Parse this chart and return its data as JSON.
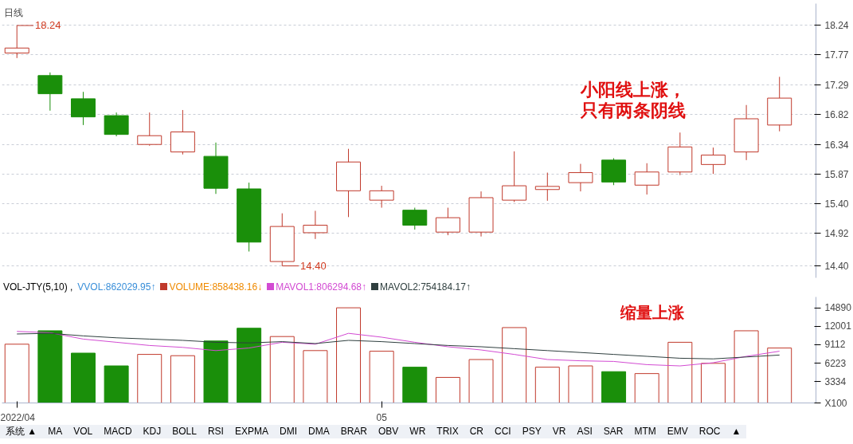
{
  "chart_data": [
    {
      "type": "candlestick",
      "title": "日线",
      "categories": [
        "2022/04",
        null,
        null,
        null,
        null,
        null,
        null,
        null,
        null,
        null,
        null,
        "05",
        null,
        null,
        null,
        null,
        null,
        null,
        null,
        null,
        null,
        null,
        null,
        null
      ],
      "ohlc": [
        [
          17.8,
          18.24,
          17.72,
          17.88
        ],
        [
          17.44,
          17.49,
          16.88,
          17.15
        ],
        [
          17.07,
          17.18,
          16.65,
          16.78
        ],
        [
          16.8,
          16.85,
          16.47,
          16.5
        ],
        [
          16.34,
          16.85,
          16.32,
          16.48
        ],
        [
          16.22,
          16.89,
          16.18,
          16.54
        ],
        [
          16.15,
          16.37,
          15.55,
          15.64
        ],
        [
          15.63,
          15.73,
          14.63,
          14.78
        ],
        [
          14.47,
          15.24,
          14.4,
          15.03
        ],
        [
          14.93,
          15.28,
          14.83,
          15.05
        ],
        [
          15.6,
          16.27,
          15.18,
          16.06
        ],
        [
          15.45,
          15.68,
          15.33,
          15.6
        ],
        [
          15.29,
          15.33,
          14.98,
          15.05
        ],
        [
          14.94,
          15.33,
          14.89,
          15.17
        ],
        [
          14.94,
          15.59,
          14.87,
          15.49
        ],
        [
          15.45,
          16.23,
          15.42,
          15.68
        ],
        [
          15.62,
          15.89,
          15.44,
          15.67
        ],
        [
          15.73,
          16.03,
          15.59,
          15.89
        ],
        [
          16.09,
          16.12,
          15.69,
          15.74
        ],
        [
          15.69,
          16.04,
          15.54,
          15.9
        ],
        [
          15.9,
          16.53,
          15.85,
          16.3
        ],
        [
          16.02,
          16.29,
          15.87,
          16.17
        ],
        [
          16.22,
          16.97,
          16.09,
          16.75
        ],
        [
          16.65,
          17.42,
          16.55,
          17.08
        ]
      ],
      "colors": [
        "#c0392b",
        "#1a8f0a",
        "#1a8f0a",
        "#1a8f0a",
        "#c0392b",
        "#c0392b",
        "#1a8f0a",
        "#1a8f0a",
        "#c0392b",
        "#c0392b",
        "#c0392b",
        "#c0392b",
        "#1a8f0a",
        "#c0392b",
        "#c0392b",
        "#c0392b",
        "#c0392b",
        "#c0392b",
        "#1a8f0a",
        "#c0392b",
        "#c0392b",
        "#c0392b",
        "#c0392b",
        "#c0392b"
      ],
      "ylim": [
        14.21,
        18.59
      ],
      "yticks": [
        18.24,
        17.77,
        17.29,
        16.82,
        16.34,
        15.87,
        {
          "value": 15.4,
          "label": "15.40"
        },
        14.92,
        {
          "value": 14.4,
          "label": "14.40"
        }
      ],
      "grid": "y",
      "tick_labels": "y",
      "annotations": [
        {
          "text": "18.24",
          "x": "2022/04",
          "y": 18.24
        },
        "14.40",
        "小阳线上涨，",
        "只有两条阴线"
      ]
    },
    {
      "type": "bar",
      "title": "VOL-JTY(5,10) ,",
      "categories": [
        "2022/04",
        null,
        null,
        null,
        null,
        null,
        null,
        null,
        null,
        null,
        null,
        "05",
        null,
        null,
        null,
        null,
        null,
        null,
        null,
        null,
        null,
        null,
        null,
        null
      ],
      "series": [
        {
          "name": "VOLUME:858438.16↓",
          "type": "bar",
          "colors": [
            "#c0392b",
            "#1a8f0a",
            "#1a8f0a",
            "#1a8f0a",
            "#c0392b",
            "#c0392b",
            "#1a8f0a",
            "#1a8f0a",
            "#c0392b",
            "#c0392b",
            "#c0392b",
            "#c0392b",
            "#1a8f0a",
            "#c0392b",
            "#c0392b",
            "#c0392b",
            "#c0392b",
            "#c0392b",
            "#1a8f0a",
            "#c0392b",
            "#c0392b",
            "#c0392b",
            "#c0392b",
            "#c0392b"
          ],
          "values": [
            9200,
            11300,
            7800,
            5800,
            7600,
            7400,
            9700,
            11700,
            10400,
            8200,
            14900,
            8100,
            5600,
            4000,
            6800,
            11800,
            5600,
            5800,
            4900,
            4600,
            9500,
            6200,
            11300,
            8600
          ]
        },
        {
          "name": "MAVOL1:806294.68↑",
          "type": "line",
          "color": "#d24bd2",
          "values": [
            11200,
            11000,
            10000,
            9500,
            9000,
            8700,
            8200,
            8600,
            9500,
            9200,
            10900,
            10300,
            9500,
            8800,
            8300,
            7600,
            6800,
            6600,
            6500,
            6000,
            5800,
            6300,
            7300,
            8100
          ]
        },
        {
          "name": "MAVOL2:754184.17↑",
          "type": "line",
          "color": "#2f3f3f",
          "values": [
            10800,
            10900,
            10500,
            10200,
            10000,
            9800,
            9500,
            9400,
            9600,
            9300,
            9800,
            9600,
            9300,
            9000,
            8800,
            8500,
            8200,
            7900,
            7600,
            7300,
            7000,
            6900,
            7200,
            7500
          ]
        }
      ],
      "ylim": [
        0,
        16600
      ],
      "yticks": [
        14890,
        12001,
        9112,
        6223,
        3334
      ],
      "legend": "top left",
      "annotations": [
        "VVOL:862029.95↑",
        "缩量上涨",
        "X100"
      ]
    },
    {
      "type": "other",
      "annotations": [
        "系统 ▲",
        "MA",
        "VOL",
        "MACD",
        "KDJ",
        "BOLL",
        "RSI",
        "EXPMA",
        "DMI",
        "DMA",
        "BRAR",
        "OBV",
        "WR",
        "TRIX",
        "CR",
        "CCI",
        "PSY",
        "VR",
        "ASI",
        "SAR",
        "MTM",
        "EMV",
        "ROC",
        "▲"
      ]
    }
  ]
}
